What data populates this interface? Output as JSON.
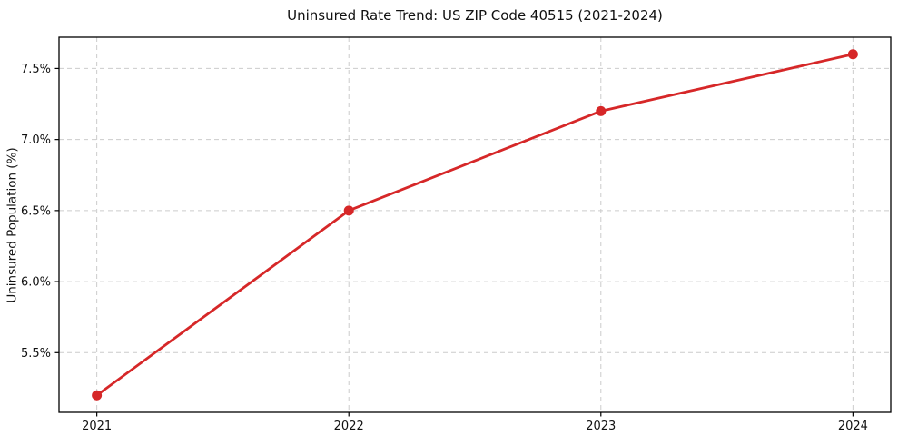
{
  "chart_data": {
    "type": "line",
    "title": "Uninsured Rate Trend: US ZIP Code 40515 (2021-2024)",
    "xlabel": "",
    "ylabel": "Uninsured Population (%)",
    "x": [
      2021,
      2022,
      2023,
      2024
    ],
    "series": [
      {
        "name": "Uninsured rate",
        "values": [
          5.2,
          6.5,
          7.2,
          7.6
        ]
      }
    ],
    "x_tick_values": [
      2021,
      2022,
      2023,
      2024
    ],
    "x_tick_labels": [
      "2021",
      "2022",
      "2023",
      "2024"
    ],
    "y_tick_values": [
      5.5,
      6.0,
      6.5,
      7.0,
      7.5
    ],
    "y_tick_labels": [
      "5.5%",
      "6.0%",
      "6.5%",
      "7.0%",
      "7.5%"
    ],
    "xlim": [
      2020.85,
      2024.15
    ],
    "ylim": [
      5.08,
      7.72
    ],
    "grid": true,
    "grid_style": "dashed",
    "legend": false,
    "colors": {
      "line": "#d62728",
      "marker": "#d62728",
      "grid": "#cccccc",
      "axis": "#000000",
      "background": "#ffffff"
    }
  }
}
